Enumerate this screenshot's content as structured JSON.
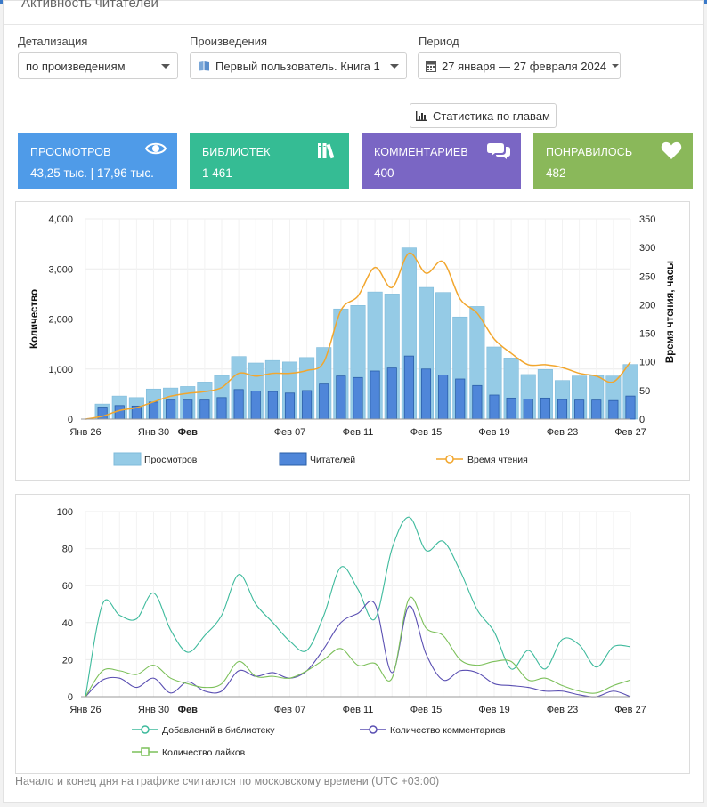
{
  "panel": {
    "title": "Активность читателей"
  },
  "filters": {
    "detail": {
      "label": "Детализация",
      "value": "по произведениям"
    },
    "work": {
      "label": "Произведения",
      "value": "Первый пользователь. Книга 1"
    },
    "period": {
      "label": "Период",
      "value": "27 января — 27 февраля 2024"
    }
  },
  "chapter_button": {
    "label": "Статистика по главам"
  },
  "cards": [
    {
      "label": "Просмотров",
      "value": "43,25 тыс. | 17,96 тыс.",
      "color": "#4f9be8",
      "icon": "eye-icon"
    },
    {
      "label": "Библиотек",
      "value": "1 461",
      "color": "#35bc94",
      "icon": "books-icon"
    },
    {
      "label": "Комментариев",
      "value": "400",
      "color": "#7a66c4",
      "icon": "comments-icon"
    },
    {
      "label": "Понравилось",
      "value": "482",
      "color": "#8ab85a",
      "icon": "heart-icon"
    }
  ],
  "chart_data": [
    {
      "type": "bar",
      "categories": [
        "Янв 26",
        "Янв 27",
        "Янв 28",
        "Янв 29",
        "Янв 30",
        "Янв 31",
        "Фев",
        "Фев 02",
        "Фев 03",
        "Фев 04",
        "Фев 05",
        "Фев 06",
        "Фев 07",
        "Фев 08",
        "Фев 09",
        "Фев 10",
        "Фев 11",
        "Фев 12",
        "Фев 13",
        "Фев 14",
        "Фев 15",
        "Фев 16",
        "Фев 17",
        "Фев 18",
        "Фев 19",
        "Фев 20",
        "Фев 21",
        "Фев 22",
        "Фев 23",
        "Фев 24",
        "Фев 25",
        "Фев 26",
        "Фев 27"
      ],
      "x_tick_labels": [
        "Янв 26",
        "Янв 30",
        "Фев",
        "Фев 07",
        "Фев 11",
        "Фев 15",
        "Фев 19",
        "Фев 23",
        "Фев 27"
      ],
      "ylabel": "Количество",
      "y2label": "Время чтения, часы",
      "ylim": [
        0,
        4000
      ],
      "y_ticks": [
        "0",
        "1,000",
        "2,000",
        "3,000",
        "4,000"
      ],
      "y2lim": [
        0,
        350
      ],
      "y2_ticks": [
        "0",
        "50",
        "100",
        "150",
        "200",
        "250",
        "300",
        "350"
      ],
      "grid": true,
      "legend_position": "bottom",
      "series": [
        {
          "name": "Просмотров",
          "kind": "bar",
          "color": "#95cbe6",
          "values": [
            0,
            300,
            460,
            430,
            600,
            620,
            650,
            740,
            870,
            1250,
            1120,
            1170,
            1140,
            1230,
            1430,
            2200,
            2270,
            2540,
            2500,
            3420,
            2630,
            2530,
            2040,
            2250,
            1440,
            1220,
            890,
            990,
            770,
            860,
            870,
            860,
            1090
          ]
        },
        {
          "name": "Читателей",
          "kind": "bar",
          "color": "#4f86d9",
          "values": [
            0,
            240,
            270,
            260,
            340,
            380,
            380,
            380,
            430,
            590,
            560,
            550,
            520,
            570,
            700,
            860,
            830,
            960,
            1020,
            1260,
            1000,
            880,
            800,
            670,
            480,
            420,
            400,
            420,
            390,
            380,
            380,
            370,
            460
          ]
        },
        {
          "name": "Время чтения",
          "kind": "line",
          "axis": "y2",
          "color": "#f2a62d",
          "values": [
            0,
            5,
            15,
            20,
            30,
            40,
            45,
            48,
            55,
            80,
            75,
            80,
            80,
            85,
            100,
            190,
            215,
            265,
            230,
            290,
            255,
            275,
            210,
            185,
            140,
            115,
            95,
            95,
            90,
            80,
            75,
            65,
            100
          ]
        }
      ]
    },
    {
      "type": "line",
      "categories": [
        "Янв 26",
        "Янв 27",
        "Янв 28",
        "Янв 29",
        "Янв 30",
        "Янв 31",
        "Фев",
        "Фев 02",
        "Фев 03",
        "Фев 04",
        "Фев 05",
        "Фев 06",
        "Фев 07",
        "Фев 08",
        "Фев 09",
        "Фев 10",
        "Фев 11",
        "Фев 12",
        "Фев 13",
        "Фев 14",
        "Фев 15",
        "Фев 16",
        "Фев 17",
        "Фев 18",
        "Фев 19",
        "Фев 20",
        "Фев 21",
        "Фев 22",
        "Фев 23",
        "Фев 24",
        "Фев 25",
        "Фев 26",
        "Фев 27"
      ],
      "x_tick_labels": [
        "Янв 26",
        "Янв 30",
        "Фев",
        "Фев 07",
        "Фев 11",
        "Фев 15",
        "Фев 19",
        "Фев 23",
        "Фев 27"
      ],
      "ylim": [
        0,
        100
      ],
      "y_ticks": [
        "0",
        "20",
        "40",
        "60",
        "80",
        "100"
      ],
      "grid": true,
      "legend_position": "bottom",
      "series": [
        {
          "name": "Добавлений в библиотеку",
          "color": "#3dba9c",
          "values": [
            0,
            50,
            44,
            42,
            56,
            36,
            24,
            33,
            44,
            66,
            50,
            40,
            30,
            25,
            44,
            70,
            58,
            42,
            80,
            97,
            79,
            84,
            68,
            47,
            35,
            15,
            25,
            15,
            31,
            28,
            16,
            27,
            27
          ]
        },
        {
          "name": "Количество комментариев",
          "color": "#5a4fb2",
          "values": [
            0,
            9,
            10,
            5,
            10,
            2,
            8,
            3,
            3,
            14,
            11,
            13,
            10,
            14,
            26,
            40,
            45,
            50,
            13,
            49,
            23,
            9,
            14,
            13,
            7,
            6,
            5,
            3,
            3,
            1,
            0,
            3,
            0
          ]
        },
        {
          "name": "Количество лайков",
          "color": "#7cc05a",
          "values": [
            0,
            14,
            14,
            12,
            17,
            10,
            7,
            5,
            7,
            19,
            11,
            11,
            10,
            14,
            20,
            26,
            17,
            18,
            10,
            53,
            37,
            33,
            20,
            17,
            19,
            19,
            9,
            10,
            6,
            3,
            2,
            6,
            9
          ]
        }
      ]
    }
  ],
  "footnote": "Начало и конец дня на графике считаются по московскому времени (UTC +03:00)"
}
